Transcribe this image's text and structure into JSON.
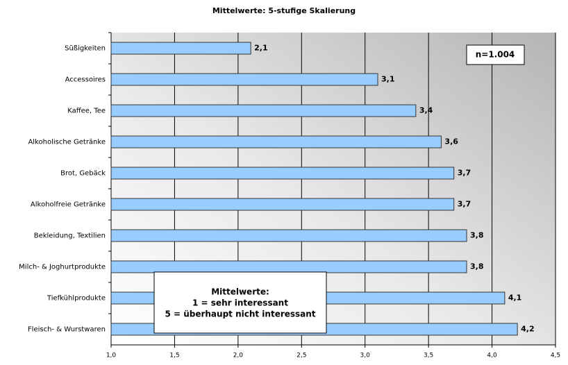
{
  "chart_data": {
    "type": "hbar",
    "title": "Mittelwerte: 5-stufige Skalierung",
    "categories": [
      "Süßigkeiten",
      "Accessoires",
      "Kaffee, Tee",
      "Alkoholische Getränke",
      "Brot, Gebäck",
      "Alkoholfreie Getränke",
      "Bekleidung, Textilien",
      "Milch- & Joghurtprodukte",
      "Tiefkühlprodukte",
      "Fleisch- & Wurstwaren"
    ],
    "values": [
      2.1,
      3.1,
      3.4,
      3.6,
      3.7,
      3.7,
      3.8,
      3.8,
      4.1,
      4.2
    ],
    "value_labels": [
      "2,1",
      "3,1",
      "3,4",
      "3,6",
      "3,7",
      "3,7",
      "3,8",
      "3,8",
      "4,1",
      "4,2"
    ],
    "color": "#99ccff",
    "xlim": [
      1.0,
      4.5
    ],
    "xticks": [
      {
        "value": 1.0,
        "label": "1,0"
      },
      {
        "value": 1.5,
        "label": "1,5"
      },
      {
        "value": 2.0,
        "label": "2,0"
      },
      {
        "value": 2.5,
        "label": "2,5"
      },
      {
        "value": 3.0,
        "label": "3,0"
      },
      {
        "value": 3.5,
        "label": "3,5"
      },
      {
        "value": 4.0,
        "label": "4,0"
      },
      {
        "value": 4.5,
        "label": "4,5"
      }
    ],
    "grid": true,
    "annotations": [
      "n=1.004",
      "Mittelwerte:",
      "1 = sehr interessant",
      "5 = überhaupt nicht interessant"
    ]
  }
}
